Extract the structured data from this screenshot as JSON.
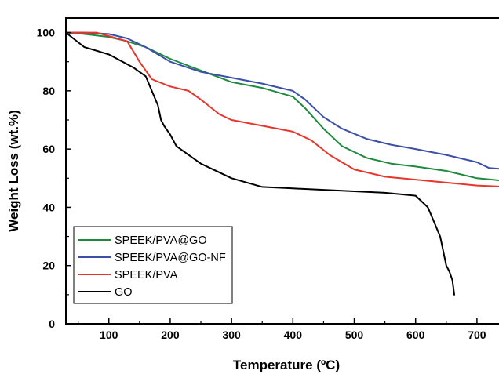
{
  "chart_data": {
    "type": "line",
    "xlabel": "Temperature (ºC)",
    "ylabel": "Weight Loss (wt.%)",
    "xlim": [
      30,
      750
    ],
    "ylim": [
      0,
      105
    ],
    "xticks": [
      100,
      200,
      300,
      400,
      500,
      600,
      700
    ],
    "yticks": [
      0,
      20,
      40,
      60,
      80,
      100
    ],
    "grid": false,
    "legend_position": "bottom-left",
    "series": [
      {
        "name": "SPEEK/PVA@GO",
        "color": "#1e8a3c",
        "x": [
          30,
          60,
          100,
          130,
          160,
          200,
          250,
          300,
          350,
          400,
          420,
          450,
          480,
          520,
          560,
          600,
          650,
          700,
          750
        ],
        "y": [
          100,
          99.5,
          98.5,
          97,
          95,
          91,
          87,
          83,
          81,
          78,
          74,
          67,
          61,
          57,
          55,
          54,
          52.5,
          50,
          49
        ]
      },
      {
        "name": "SPEEK/PVA@GO-NF",
        "color": "#3a4fa7",
        "x": [
          30,
          60,
          100,
          130,
          160,
          200,
          250,
          300,
          350,
          400,
          420,
          450,
          480,
          520,
          560,
          600,
          650,
          700,
          720,
          750
        ],
        "y": [
          100,
          100,
          99.5,
          98,
          95,
          90,
          86.5,
          84.5,
          82.5,
          80,
          77,
          71,
          67,
          63.5,
          61.5,
          60,
          58,
          55.5,
          53.5,
          53
        ]
      },
      {
        "name": "SPEEK/PVA",
        "color": "#e8352b",
        "x": [
          30,
          80,
          130,
          150,
          170,
          200,
          230,
          250,
          280,
          300,
          350,
          400,
          430,
          460,
          500,
          550,
          600,
          650,
          700,
          750
        ],
        "y": [
          100,
          100,
          97,
          90,
          84,
          81.5,
          80,
          77,
          72,
          70,
          68,
          66,
          63,
          58,
          53,
          50.5,
          49.5,
          48.5,
          47.5,
          47
        ]
      },
      {
        "name": "GO",
        "color": "#000000",
        "x": [
          30,
          60,
          100,
          140,
          160,
          170,
          180,
          185,
          190,
          200,
          210,
          250,
          300,
          350,
          400,
          450,
          500,
          550,
          600,
          620,
          630,
          640,
          645,
          650,
          655,
          660,
          663
        ],
        "y": [
          100,
          95,
          92.5,
          88,
          85,
          80,
          75,
          70,
          68,
          65,
          61,
          55,
          50,
          47,
          46.5,
          46,
          45.5,
          45,
          44,
          40,
          35,
          30,
          25,
          20,
          18,
          15,
          10
        ]
      }
    ]
  }
}
